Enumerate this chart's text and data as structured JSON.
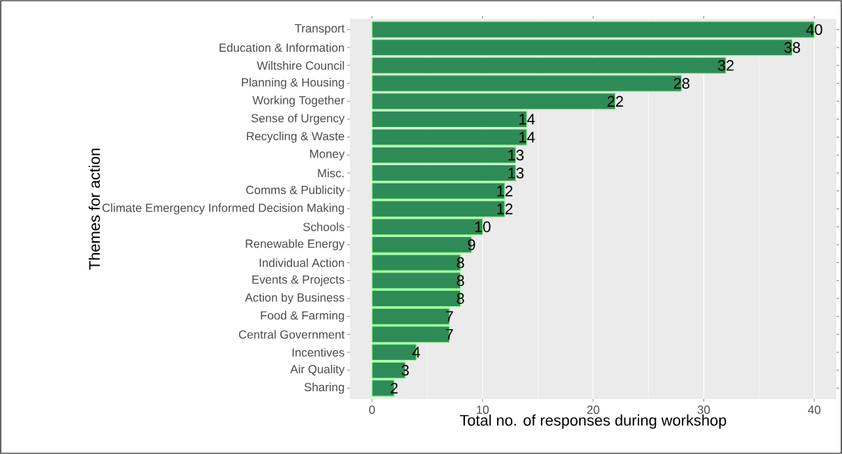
{
  "chart_data": {
    "type": "bar",
    "orientation": "horizontal",
    "categories": [
      "Transport",
      "Education & Information",
      "Wiltshire Council",
      "Planning & Housing",
      "Working Together",
      "Sense of Urgency",
      "Recycling & Waste",
      "Money",
      "Misc.",
      "Comms & Publicity",
      "Climate Emergency Informed Decision Making",
      "Schools",
      "Renewable Energy",
      "Individual Action",
      "Events & Projects",
      "Action by Business",
      "Food & Farming",
      "Central Government",
      "Incentives",
      "Air Quality",
      "Sharing"
    ],
    "values": [
      40,
      38,
      32,
      28,
      22,
      14,
      14,
      13,
      13,
      12,
      12,
      10,
      9,
      8,
      8,
      8,
      7,
      7,
      4,
      3,
      2
    ],
    "color": "#2e8b57",
    "data_labels": true,
    "xlim": [
      -2,
      42
    ],
    "xticks": [
      0,
      10,
      20,
      30,
      40
    ],
    "grid": "x",
    "xlabel": "Total no. of responses during workshop",
    "ylabel": "Themes for action"
  }
}
